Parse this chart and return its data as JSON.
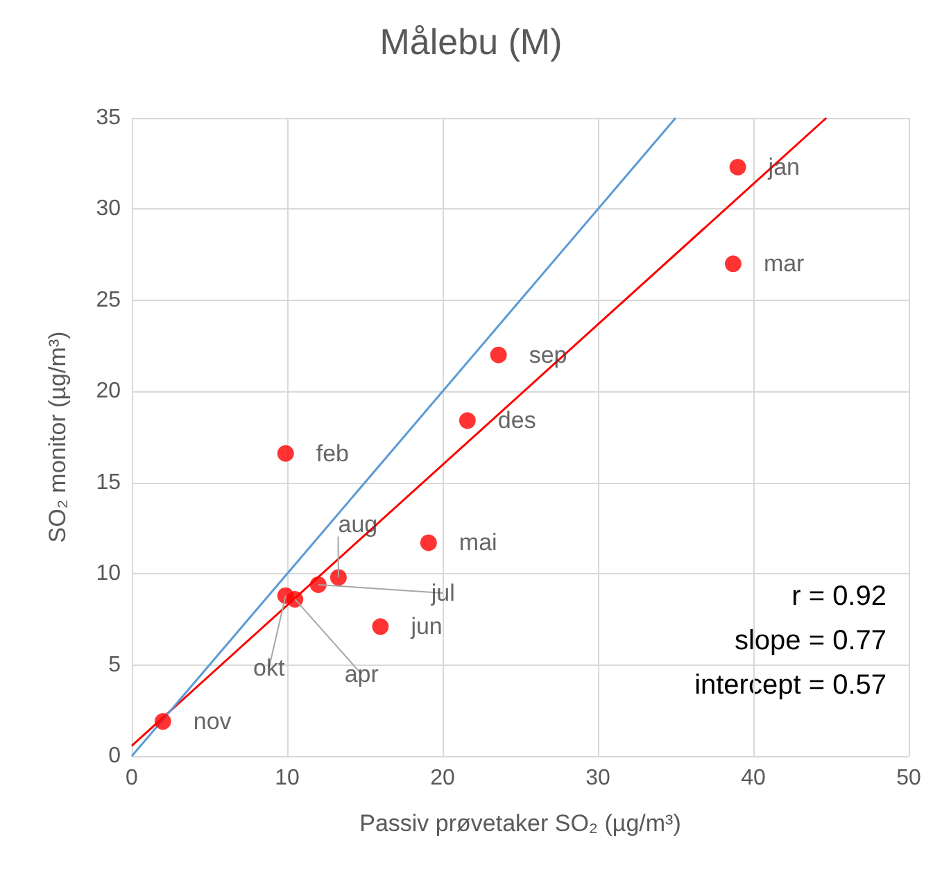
{
  "chart_data": {
    "type": "scatter",
    "title": "Målebu (M)",
    "xlabel": "Passiv prøvetaker SO₂ (µg/m³)",
    "ylabel": "SO₂ monitor (µg/m³)",
    "xlim": [
      0,
      50
    ],
    "xticks": [
      0,
      10,
      20,
      30,
      40,
      50
    ],
    "ylim": [
      0,
      35
    ],
    "yticks": [
      0,
      5,
      10,
      15,
      20,
      25,
      30,
      35
    ],
    "grid": true,
    "marker": "circle",
    "series": [
      {
        "color": "#ff0000",
        "x": [
          39,
          38.7,
          23.6,
          21.6,
          9.9,
          19.1,
          13.3,
          12.0,
          9.9,
          10.5,
          16.0,
          2.0
        ],
        "values": [
          32.3,
          27.0,
          22.0,
          18.4,
          16.6,
          11.7,
          9.8,
          9.4,
          8.8,
          8.6,
          7.1,
          1.9
        ]
      },
      {
        "type": "line",
        "color": "#ff0000",
        "marker": "none",
        "x": [
          0,
          44.7
        ],
        "values": [
          0.57,
          35
        ]
      },
      {
        "type": "line",
        "color": "#5b9bd5",
        "marker": "none",
        "x": [
          0,
          35
        ],
        "values": [
          0,
          35
        ]
      }
    ],
    "annotations": [
      {
        "text": "jan",
        "x": 39,
        "y": 32.3
      },
      {
        "text": "mar",
        "x": 38.7,
        "y": 27.0
      },
      {
        "text": "sep",
        "x": 23.6,
        "y": 22.0
      },
      {
        "text": "des",
        "x": 21.6,
        "y": 18.4
      },
      {
        "text": "feb",
        "x": 9.9,
        "y": 16.6
      },
      {
        "text": "mai",
        "x": 19.1,
        "y": 11.7
      },
      {
        "text": "aug",
        "x": 13.3,
        "y": 9.8
      },
      {
        "text": "jul",
        "x": 12.0,
        "y": 9.4
      },
      {
        "text": "okt",
        "x": 9.9,
        "y": 8.8
      },
      {
        "text": "apr",
        "x": 10.5,
        "y": 8.6
      },
      {
        "text": "jun",
        "x": 16.0,
        "y": 7.1
      },
      {
        "text": "nov",
        "x": 2.0,
        "y": 1.9
      },
      "r = 0.92",
      "slope = 0.77",
      "intercept = 0.57"
    ]
  }
}
